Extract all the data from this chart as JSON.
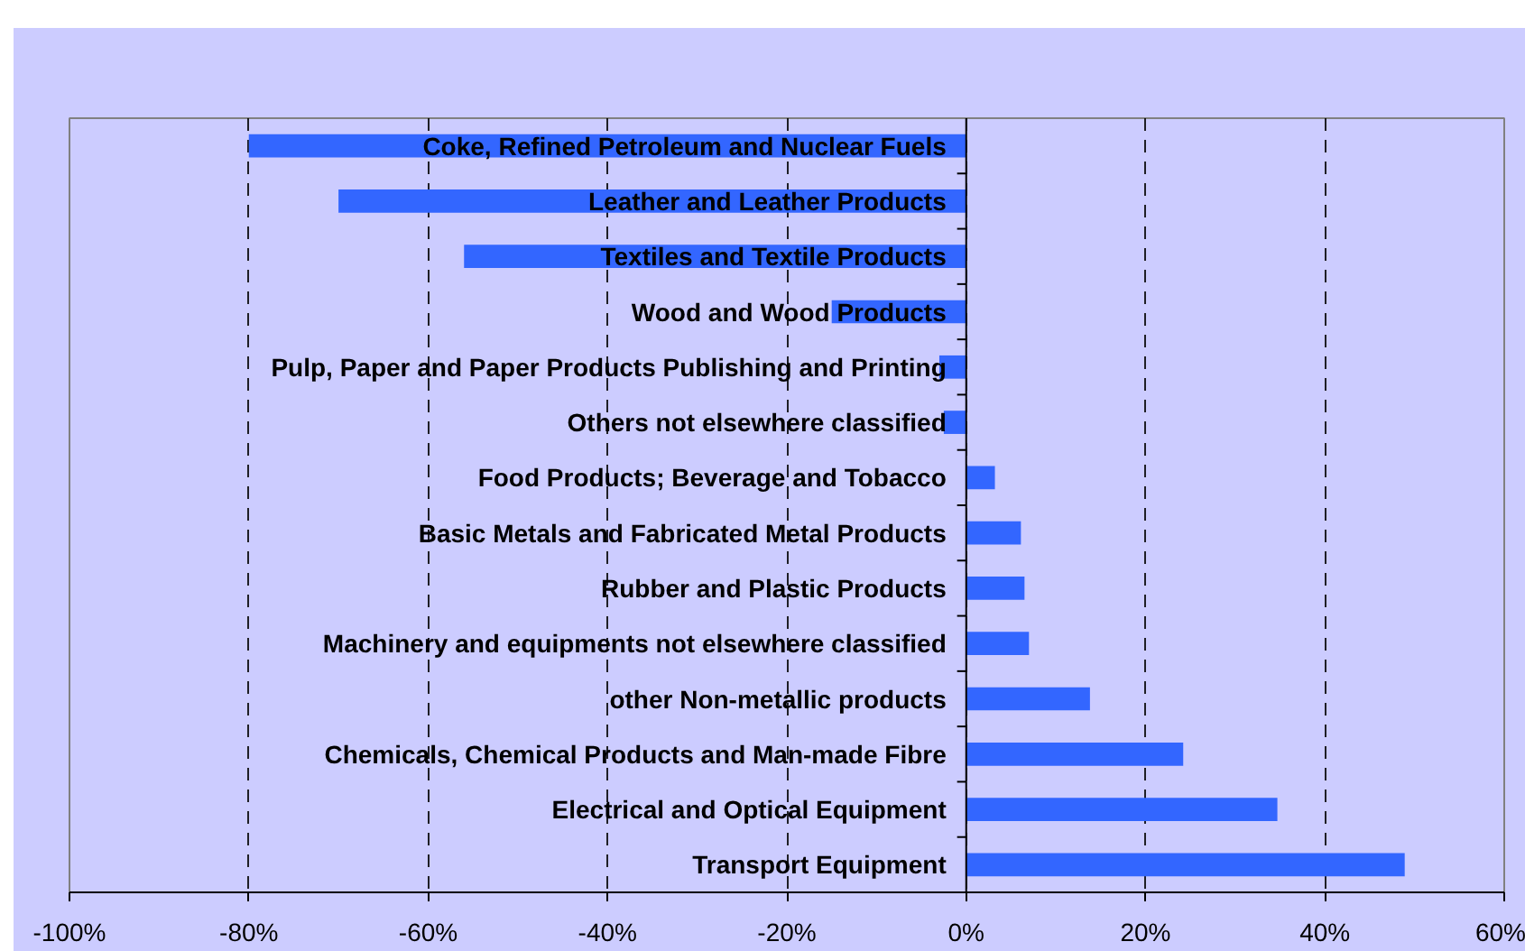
{
  "chart_data": {
    "type": "bar",
    "orientation": "horizontal",
    "categories": [
      "Coke, Refined Petroleum and Nuclear Fuels",
      "Leather and Leather Products",
      "Textiles and Textile Products",
      "Wood and Wood Products",
      "Pulp, Paper and Paper Products Publishing and Printing",
      "Others not elsewhere classified",
      "Food Products; Beverage and Tobacco",
      "Basic Metals and Fabricated Metal Products",
      "Rubber and Plastic Products",
      "Machinery and equipments not elsewhere classified",
      "other Non-metallic products",
      "Chemicals, Chemical Products and Man-made Fibre",
      "Electrical and Optical Equipment",
      "Transport Equipment"
    ],
    "values": [
      -80,
      -70,
      -56,
      -15,
      -3,
      -2.5,
      3.2,
      6.1,
      6.5,
      7,
      13.8,
      24.2,
      34.7,
      48.9
    ],
    "color": "#3366ff",
    "xlim": [
      -100,
      60
    ],
    "xticks": [
      {
        "value": -100,
        "label": "-100%"
      },
      {
        "value": -80,
        "label": "-80%"
      },
      {
        "value": -60,
        "label": "-60%"
      },
      {
        "value": -40,
        "label": "-40%"
      },
      {
        "value": -20,
        "label": "-20%"
      },
      {
        "value": 0,
        "label": "0%"
      },
      {
        "value": 20,
        "label": "20%"
      },
      {
        "value": 40,
        "label": "40%"
      },
      {
        "value": 60,
        "label": "60%"
      }
    ],
    "grid": "x"
  }
}
